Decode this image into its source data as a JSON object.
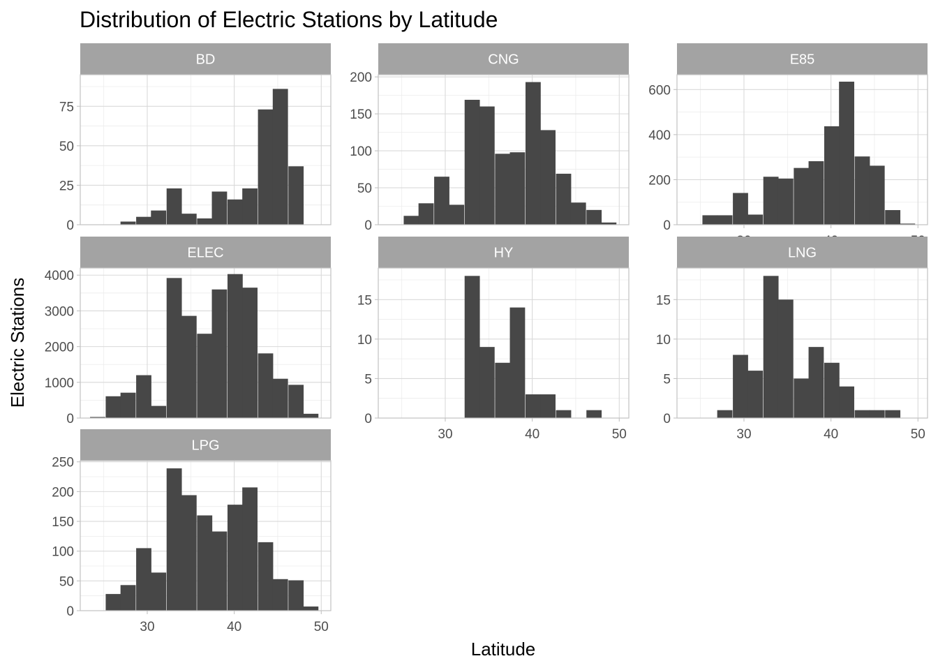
{
  "chart_data": {
    "type": "bar",
    "title": "Distribution of Electric Stations by Latitude",
    "xlabel": "Latitude",
    "ylabel": "Electric Stations",
    "colors": {
      "bar": "#474747",
      "strip": "#a3a3a3",
      "background": "#ffffff"
    },
    "grid": true,
    "bin_width": 1.75,
    "xlim": [
      22.3,
      51.1
    ],
    "x_ticks": [
      30,
      40,
      50
    ],
    "panels": [
      {
        "name": "BD",
        "ylim": [
          0,
          95
        ],
        "y_ticks": [
          0,
          25,
          50,
          75
        ],
        "bins": [
          {
            "x": 27.8,
            "y": 2
          },
          {
            "x": 29.6,
            "y": 5
          },
          {
            "x": 31.3,
            "y": 9
          },
          {
            "x": 33.1,
            "y": 23
          },
          {
            "x": 34.8,
            "y": 7
          },
          {
            "x": 36.6,
            "y": 4
          },
          {
            "x": 38.3,
            "y": 21
          },
          {
            "x": 40.1,
            "y": 16
          },
          {
            "x": 41.8,
            "y": 23
          },
          {
            "x": 43.6,
            "y": 73
          },
          {
            "x": 45.3,
            "y": 86
          },
          {
            "x": 47.1,
            "y": 37
          }
        ]
      },
      {
        "name": "CNG",
        "ylim": [
          0,
          203
        ],
        "y_ticks": [
          0,
          50,
          100,
          150,
          200
        ],
        "bins": [
          {
            "x": 26.1,
            "y": 12
          },
          {
            "x": 27.8,
            "y": 29
          },
          {
            "x": 29.6,
            "y": 65
          },
          {
            "x": 31.3,
            "y": 27
          },
          {
            "x": 33.1,
            "y": 169
          },
          {
            "x": 34.8,
            "y": 160
          },
          {
            "x": 36.6,
            "y": 96
          },
          {
            "x": 38.3,
            "y": 98
          },
          {
            "x": 40.1,
            "y": 193
          },
          {
            "x": 41.8,
            "y": 128
          },
          {
            "x": 43.6,
            "y": 69
          },
          {
            "x": 45.3,
            "y": 30
          },
          {
            "x": 47.1,
            "y": 20
          },
          {
            "x": 48.8,
            "y": 3
          }
        ]
      },
      {
        "name": "E85",
        "ylim": [
          0,
          666
        ],
        "y_ticks": [
          0,
          200,
          400,
          600
        ],
        "bins": [
          {
            "x": 26.1,
            "y": 42
          },
          {
            "x": 27.8,
            "y": 42
          },
          {
            "x": 29.6,
            "y": 141
          },
          {
            "x": 31.3,
            "y": 45
          },
          {
            "x": 33.1,
            "y": 213
          },
          {
            "x": 34.8,
            "y": 205
          },
          {
            "x": 36.6,
            "y": 252
          },
          {
            "x": 38.3,
            "y": 282
          },
          {
            "x": 40.1,
            "y": 437
          },
          {
            "x": 41.8,
            "y": 635
          },
          {
            "x": 43.6,
            "y": 303
          },
          {
            "x": 45.3,
            "y": 262
          },
          {
            "x": 47.1,
            "y": 65
          },
          {
            "x": 48.8,
            "y": 5
          }
        ]
      },
      {
        "name": "ELEC",
        "ylim": [
          0,
          4200
        ],
        "y_ticks": [
          0,
          1000,
          2000,
          3000,
          4000
        ],
        "bins": [
          {
            "x": 24.3,
            "y": 30
          },
          {
            "x": 26.1,
            "y": 610
          },
          {
            "x": 27.8,
            "y": 710
          },
          {
            "x": 29.6,
            "y": 1200
          },
          {
            "x": 31.3,
            "y": 340
          },
          {
            "x": 33.1,
            "y": 3920
          },
          {
            "x": 34.8,
            "y": 2860
          },
          {
            "x": 36.6,
            "y": 2360
          },
          {
            "x": 38.3,
            "y": 3600
          },
          {
            "x": 40.1,
            "y": 4030
          },
          {
            "x": 41.8,
            "y": 3650
          },
          {
            "x": 43.6,
            "y": 1810
          },
          {
            "x": 45.3,
            "y": 1100
          },
          {
            "x": 47.1,
            "y": 930
          },
          {
            "x": 48.8,
            "y": 120
          }
        ]
      },
      {
        "name": "HY",
        "ylim": [
          0,
          19
        ],
        "y_ticks": [
          0,
          5,
          10,
          15
        ],
        "bins": [
          {
            "x": 33.1,
            "y": 18
          },
          {
            "x": 34.8,
            "y": 9
          },
          {
            "x": 36.6,
            "y": 7
          },
          {
            "x": 38.3,
            "y": 14
          },
          {
            "x": 40.1,
            "y": 3
          },
          {
            "x": 41.8,
            "y": 3
          },
          {
            "x": 43.6,
            "y": 1
          },
          {
            "x": 45.3,
            "y": 0
          },
          {
            "x": 47.1,
            "y": 1
          }
        ]
      },
      {
        "name": "LNG",
        "ylim": [
          0,
          19
        ],
        "y_ticks": [
          0,
          5,
          10,
          15
        ],
        "bins": [
          {
            "x": 27.8,
            "y": 1
          },
          {
            "x": 29.6,
            "y": 8
          },
          {
            "x": 31.3,
            "y": 6
          },
          {
            "x": 33.1,
            "y": 18
          },
          {
            "x": 34.8,
            "y": 15
          },
          {
            "x": 36.6,
            "y": 5
          },
          {
            "x": 38.3,
            "y": 9
          },
          {
            "x": 40.1,
            "y": 7
          },
          {
            "x": 41.8,
            "y": 4
          },
          {
            "x": 43.6,
            "y": 1
          },
          {
            "x": 45.3,
            "y": 1
          },
          {
            "x": 47.1,
            "y": 1
          }
        ]
      },
      {
        "name": "LPG",
        "ylim": [
          0,
          252
        ],
        "y_ticks": [
          0,
          50,
          100,
          150,
          200,
          250
        ],
        "bins": [
          {
            "x": 26.1,
            "y": 28
          },
          {
            "x": 27.8,
            "y": 43
          },
          {
            "x": 29.6,
            "y": 105
          },
          {
            "x": 31.3,
            "y": 64
          },
          {
            "x": 33.1,
            "y": 239
          },
          {
            "x": 34.8,
            "y": 194
          },
          {
            "x": 36.6,
            "y": 160
          },
          {
            "x": 38.3,
            "y": 133
          },
          {
            "x": 40.1,
            "y": 178
          },
          {
            "x": 41.8,
            "y": 207
          },
          {
            "x": 43.6,
            "y": 115
          },
          {
            "x": 45.3,
            "y": 53
          },
          {
            "x": 47.1,
            "y": 51
          },
          {
            "x": 48.8,
            "y": 7
          }
        ]
      }
    ]
  }
}
